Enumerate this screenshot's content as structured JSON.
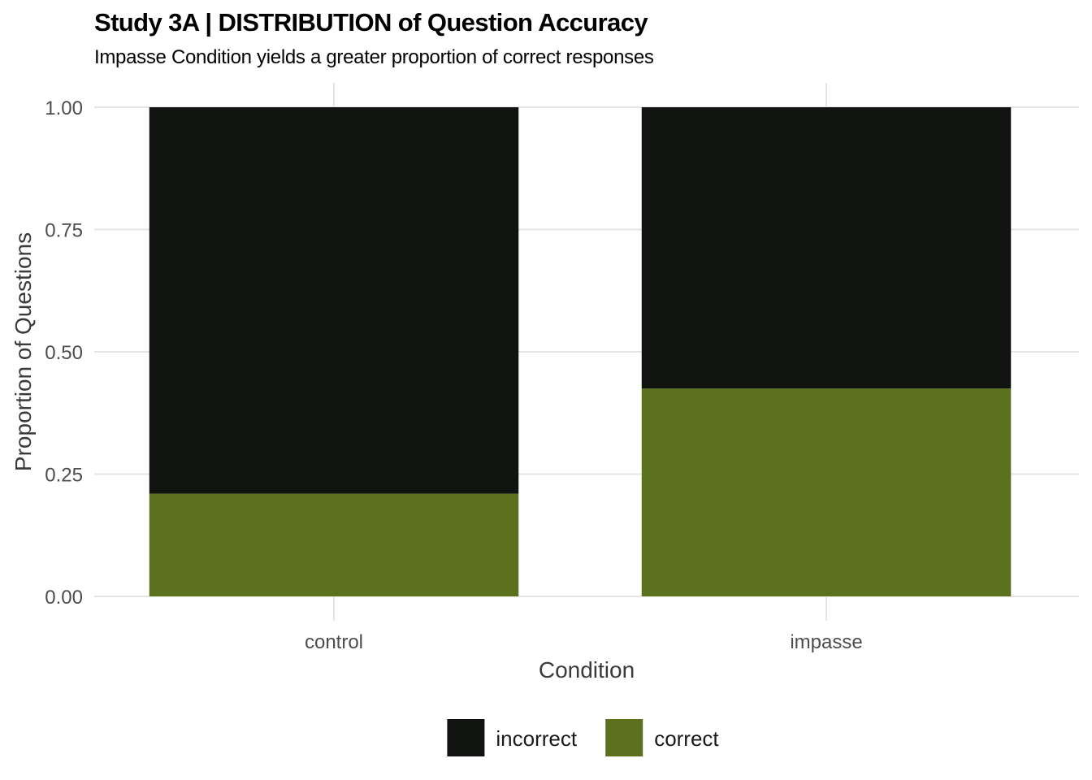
{
  "chart_data": {
    "type": "bar",
    "stacked": true,
    "title": "Study 3A | DISTRIBUTION of Question Accuracy",
    "subtitle": "Impasse Condition yields a greater proportion of correct responses",
    "xlabel": "Condition",
    "ylabel": "Proportion of Questions",
    "categories": [
      "control",
      "impasse"
    ],
    "series": [
      {
        "name": "incorrect",
        "color": "#111311",
        "values": [
          0.79,
          0.575
        ]
      },
      {
        "name": "correct",
        "color": "#5b711e",
        "values": [
          0.21,
          0.425
        ]
      }
    ],
    "ylim": [
      0,
      1
    ],
    "yticks": [
      "0.00",
      "0.25",
      "0.50",
      "0.75",
      "1.00"
    ],
    "grid": true,
    "legend_position": "bottom"
  }
}
